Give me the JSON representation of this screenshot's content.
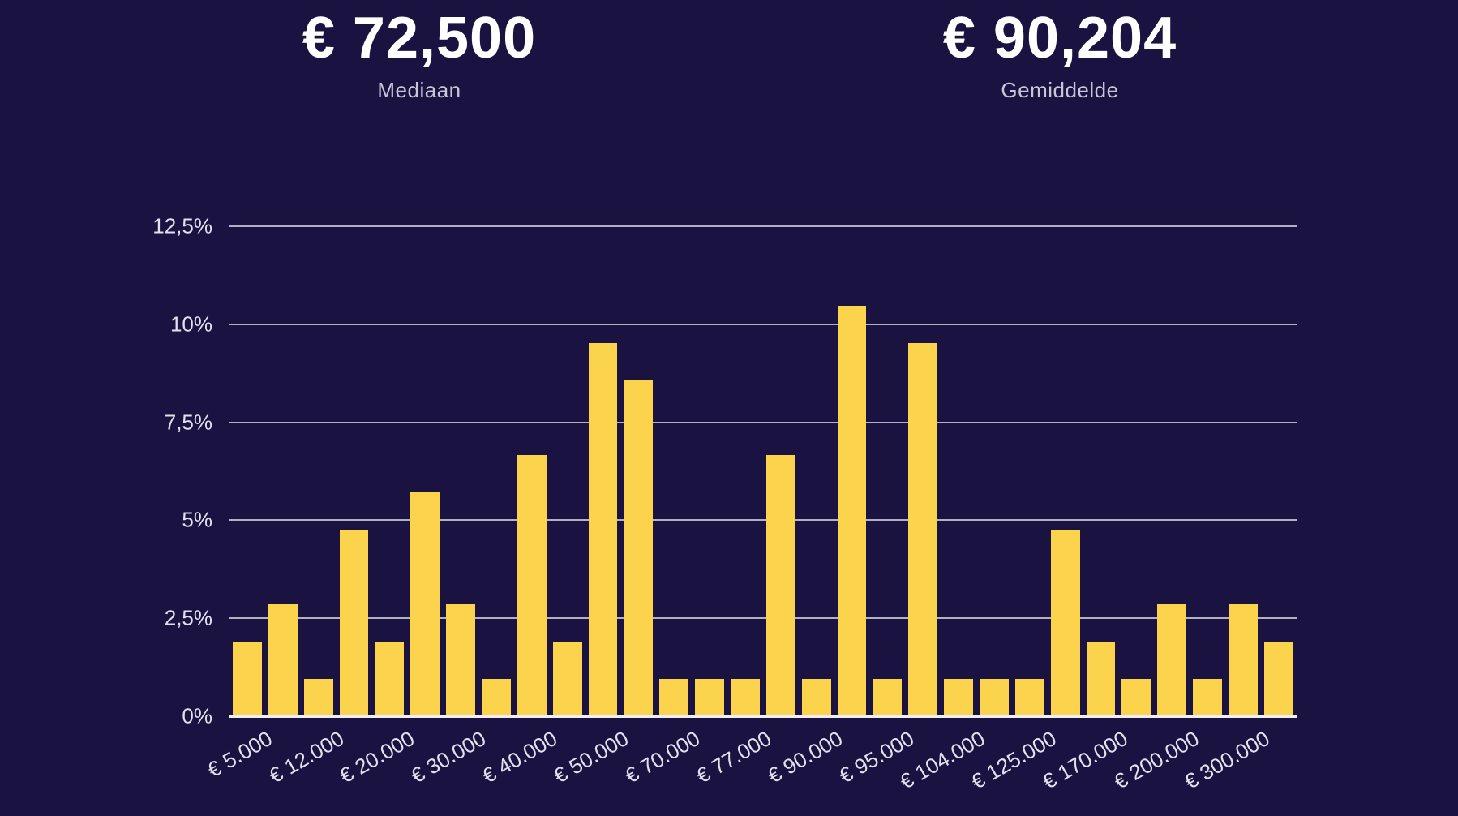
{
  "stats": {
    "median": {
      "value": "€ 72,500",
      "label": "Mediaan"
    },
    "mean": {
      "value": "€ 90,204",
      "label": "Gemiddelde"
    }
  },
  "chart_data": {
    "type": "bar",
    "title": "",
    "xlabel": "",
    "ylabel": "",
    "ylim": [
      0,
      12.5
    ],
    "grid": true,
    "bar_color": "#fbd34d",
    "background_color": "#1a1341",
    "gridline_color": "#b3b2c4",
    "axis_line_color": "#efeef6",
    "tick_label_color": "#e3e1ee",
    "y_ticks": [
      {
        "label": "0%",
        "value": 0
      },
      {
        "label": "2,5%",
        "value": 2.5
      },
      {
        "label": "5%",
        "value": 5
      },
      {
        "label": "7,5%",
        "value": 7.5
      },
      {
        "label": "10%",
        "value": 10
      },
      {
        "label": "12,5%",
        "value": 12.5
      }
    ],
    "bars_per_label": 2,
    "x_tick_labels": [
      "€ 5.000",
      "€ 12.000",
      "€ 20.000",
      "€ 30.000",
      "€ 40.000",
      "€ 50.000",
      "€ 70.000",
      "€ 77.000",
      "€ 90.000",
      "€ 95.000",
      "€ 104.000",
      "€ 125.000",
      "€ 170.000",
      "€ 200.000",
      "€ 300.000"
    ],
    "values": [
      1.9,
      2.86,
      0.95,
      4.76,
      1.9,
      5.71,
      2.86,
      0.95,
      6.67,
      1.9,
      9.52,
      8.57,
      0.95,
      0.95,
      0.95,
      6.67,
      0.95,
      10.48,
      0.95,
      9.52,
      0.95,
      0.95,
      0.95,
      4.76,
      1.9,
      0.95,
      2.86,
      0.95,
      2.86,
      1.9
    ]
  }
}
